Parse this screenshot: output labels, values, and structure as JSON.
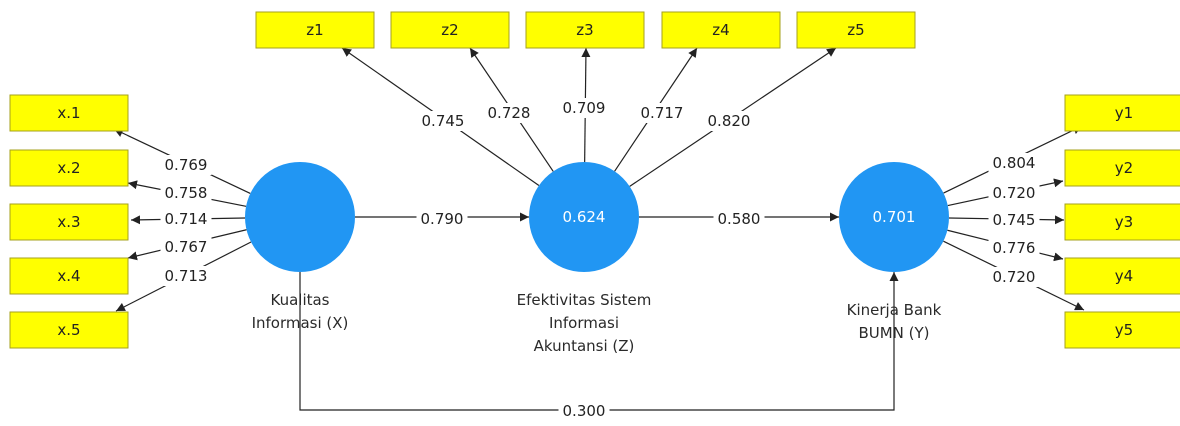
{
  "colors": {
    "indicator_fill": "#ffff00",
    "construct_fill": "#2196f3",
    "edge": "#222222"
  },
  "constructs": [
    {
      "id": "X",
      "value": "",
      "caption": [
        "Kualitas",
        "Informasi (X)"
      ]
    },
    {
      "id": "Z",
      "value": "0.624",
      "caption": [
        "Efektivitas Sistem",
        "Informasi",
        "Akuntansi (Z)"
      ]
    },
    {
      "id": "Y",
      "value": "0.701",
      "caption": [
        "Kinerja Bank",
        "BUMN (Y)"
      ]
    }
  ],
  "indicators": {
    "X": [
      {
        "label": "x.1",
        "loading": "0.769"
      },
      {
        "label": "x.2",
        "loading": "0.758"
      },
      {
        "label": "x.3",
        "loading": "0.714"
      },
      {
        "label": "x.4",
        "loading": "0.767"
      },
      {
        "label": "x.5",
        "loading": "0.713"
      }
    ],
    "Z": [
      {
        "label": "z1",
        "loading": "0.745"
      },
      {
        "label": "z2",
        "loading": "0.728"
      },
      {
        "label": "z3",
        "loading": "0.709"
      },
      {
        "label": "z4",
        "loading": "0.717"
      },
      {
        "label": "z5",
        "loading": "0.820"
      }
    ],
    "Y": [
      {
        "label": "y1",
        "loading": "0.804"
      },
      {
        "label": "y2",
        "loading": "0.720"
      },
      {
        "label": "y3",
        "loading": "0.745"
      },
      {
        "label": "y4",
        "loading": "0.776"
      },
      {
        "label": "y5",
        "loading": "0.720"
      }
    ]
  },
  "paths": [
    {
      "from": "X",
      "to": "Z",
      "coefficient": "0.790"
    },
    {
      "from": "Z",
      "to": "Y",
      "coefficient": "0.580"
    },
    {
      "from": "X",
      "to": "Y",
      "coefficient": "0.300"
    }
  ]
}
